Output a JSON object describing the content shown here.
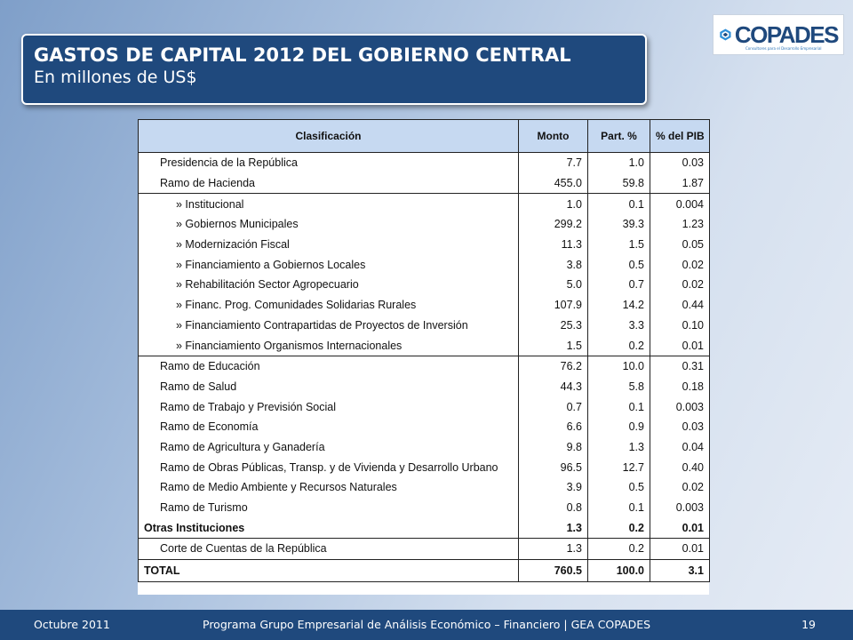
{
  "header": {
    "title": "GASTOS DE CAPITAL 2012 DEL GOBIERNO CENTRAL",
    "subtitle": "En millones de US$"
  },
  "logo": {
    "name": "COPADES",
    "tagline": "Consultores para el Desarrollo Empresarial"
  },
  "table": {
    "columns": [
      "Clasificación",
      "Monto",
      "Part. %",
      "% del PIB"
    ],
    "rows": [
      {
        "label": "Presidencia de la República",
        "monto": "7.7",
        "part": "1.0",
        "pib": "0.03"
      },
      {
        "label": "Ramo de Hacienda",
        "monto": "455.0",
        "part": "59.8",
        "pib": "1.87"
      },
      {
        "label": "» Institucional",
        "monto": "1.0",
        "part": "0.1",
        "pib": "0.004"
      },
      {
        "label": "» Gobiernos Municipales",
        "monto": "299.2",
        "part": "39.3",
        "pib": "1.23"
      },
      {
        "label": "» Modernización Fiscal",
        "monto": "11.3",
        "part": "1.5",
        "pib": "0.05"
      },
      {
        "label": "» Financiamiento a Gobiernos Locales",
        "monto": "3.8",
        "part": "0.5",
        "pib": "0.02"
      },
      {
        "label": "» Rehabilitación Sector Agropecuario",
        "monto": "5.0",
        "part": "0.7",
        "pib": "0.02"
      },
      {
        "label": "» Financ. Prog. Comunidades Solidarias Rurales",
        "monto": "107.9",
        "part": "14.2",
        "pib": "0.44"
      },
      {
        "label": "» Financiamiento Contrapartidas de Proyectos de Inversión",
        "monto": "25.3",
        "part": "3.3",
        "pib": "0.10"
      },
      {
        "label": "» Financiamiento Organismos Internacionales",
        "monto": "1.5",
        "part": "0.2",
        "pib": "0.01"
      },
      {
        "label": "Ramo de Educación",
        "monto": "76.2",
        "part": "10.0",
        "pib": "0.31"
      },
      {
        "label": "Ramo de Salud",
        "monto": "44.3",
        "part": "5.8",
        "pib": "0.18"
      },
      {
        "label": "Ramo de Trabajo y Previsión Social",
        "monto": "0.7",
        "part": "0.1",
        "pib": "0.003"
      },
      {
        "label": "Ramo de Economía",
        "monto": "6.6",
        "part": "0.9",
        "pib": "0.03"
      },
      {
        "label": "Ramo de Agricultura y Ganadería",
        "monto": "9.8",
        "part": "1.3",
        "pib": "0.04"
      },
      {
        "label": "Ramo de Obras Públicas, Transp. y de Vivienda y Desarrollo Urbano",
        "monto": "96.5",
        "part": "12.7",
        "pib": "0.40"
      },
      {
        "label": "Ramo de Medio Ambiente y Recursos Naturales",
        "monto": "3.9",
        "part": "0.5",
        "pib": "0.02"
      },
      {
        "label": "Ramo de Turismo",
        "monto": "0.8",
        "part": "0.1",
        "pib": "0.003"
      },
      {
        "label": "Otras Instituciones",
        "monto": "1.3",
        "part": "0.2",
        "pib": "0.01"
      },
      {
        "label": "Corte de Cuentas de la República",
        "monto": "1.3",
        "part": "0.2",
        "pib": "0.01"
      }
    ],
    "total": {
      "label": "TOTAL",
      "monto": "760.5",
      "part": "100.0",
      "pib": "3.1"
    }
  },
  "footer": {
    "date": "Octubre 2011",
    "text": "Programa Grupo Empresarial de Análisis Económico – Financiero | GEA COPADES",
    "page": "19"
  },
  "colors": {
    "title_bg": "#1f497d",
    "header_bg": "#c6d9f1",
    "footer_bg": "#1f497d"
  }
}
